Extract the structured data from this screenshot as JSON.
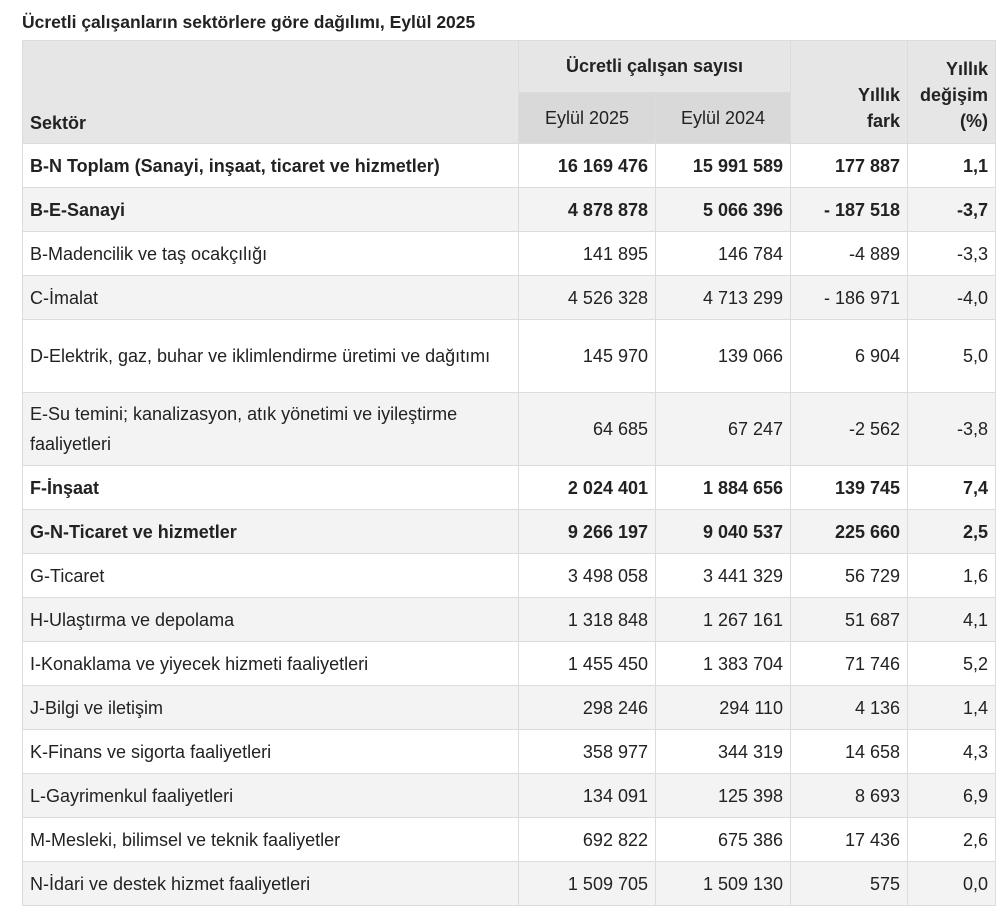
{
  "title": "Ücretli çalışanların sektörlere göre dağılımı, Eylül 2025",
  "header": {
    "sector": "Sektör",
    "group": "Ücretli çalışan sayısı",
    "col2025": "Eylül 2025",
    "col2024": "Eylül 2024",
    "diff": [
      "Yıllık",
      "fark"
    ],
    "change": [
      "Yıllık",
      "değişim",
      "(%)"
    ]
  },
  "table": {
    "rows": [
      [
        "B-N Toplam (Sanayi, inşaat, ticaret ve hizmetler)",
        "16 169 476",
        "15 991 589",
        "177 887",
        "1,1"
      ],
      [
        "B-E-Sanayi",
        "4 878 878",
        "5 066 396",
        "- 187 518",
        "-3,7"
      ],
      [
        "B-Madencilik ve taş ocakçılığı",
        "141 895",
        "146 784",
        "-4 889",
        "-3,3"
      ],
      [
        "C-İmalat",
        "4 526 328",
        "4 713 299",
        "- 186 971",
        "-4,0"
      ],
      [
        "D-Elektrik, gaz, buhar ve iklimlendirme üretimi ve dağıtımı",
        "145 970",
        "139 066",
        "6 904",
        "5,0"
      ],
      [
        "E-Su temini; kanalizasyon, atık yönetimi ve iyileştirme faaliyetleri",
        "64 685",
        "67 247",
        "-2 562",
        "-3,8"
      ],
      [
        "F-İnşaat",
        "2 024 401",
        "1 884 656",
        "139 745",
        "7,4"
      ],
      [
        "G-N-Ticaret ve hizmetler",
        "9 266 197",
        "9 040 537",
        "225 660",
        "2,5"
      ],
      [
        "G-Ticaret",
        "3 498 058",
        "3 441 329",
        "56 729",
        "1,6"
      ],
      [
        "H-Ulaştırma ve depolama",
        "1 318 848",
        "1 267 161",
        "51 687",
        "4,1"
      ],
      [
        "I-Konaklama ve yiyecek hizmeti faaliyetleri",
        "1 455 450",
        "1 383 704",
        "71 746",
        "5,2"
      ],
      [
        "J-Bilgi ve iletişim",
        "298 246",
        "294 110",
        "4 136",
        "1,4"
      ],
      [
        "K-Finans ve sigorta faaliyetleri",
        "358 977",
        "344 319",
        "14 658",
        "4,3"
      ],
      [
        "L-Gayrimenkul faaliyetleri",
        "134 091",
        "125 398",
        "8 693",
        "6,9"
      ],
      [
        "M-Mesleki, bilimsel ve teknik faaliyetler",
        "692 822",
        "675 386",
        "17 436",
        "2,6"
      ],
      [
        "N-İdari ve destek hizmet faaliyetleri",
        "1 509 705",
        "1 509 130",
        "575",
        "0,0"
      ]
    ]
  }
}
